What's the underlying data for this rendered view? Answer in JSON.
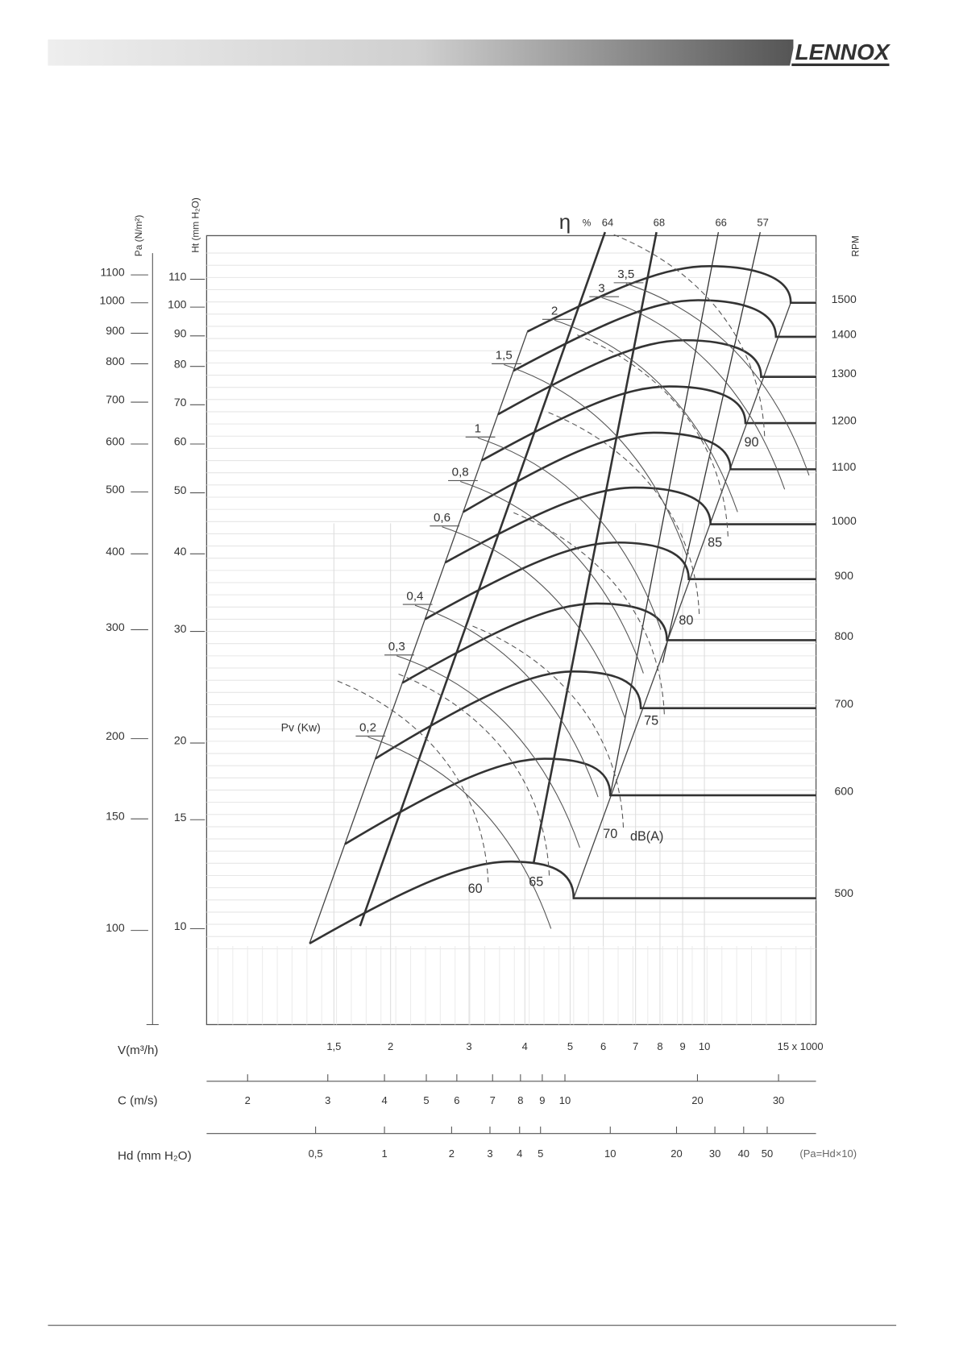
{
  "header": {
    "brand": "LENNOX"
  },
  "axes": {
    "pa": {
      "label": "Pa (N/m²)",
      "ticks": [
        "1100",
        "1000",
        "900",
        "800",
        "700",
        "600",
        "500",
        "400",
        "300",
        "200",
        "150",
        "100"
      ]
    },
    "ht": {
      "label": "Ht (mm H₂O)",
      "ticks": [
        "110",
        "100",
        "90",
        "80",
        "70",
        "60",
        "50",
        "40",
        "30",
        "20",
        "15",
        "10"
      ]
    },
    "rpm": {
      "label": "RPM",
      "ticks": [
        "1500",
        "1400",
        "1300",
        "1200",
        "1100",
        "1000",
        "900",
        "800",
        "700",
        "600",
        "500"
      ]
    },
    "v": {
      "label": "V(m³/h)",
      "ticks": [
        "1,5",
        "2",
        "3",
        "4",
        "5",
        "6",
        "7",
        "8",
        "9",
        "10",
        "15 x 1000"
      ]
    },
    "c": {
      "label": "C (m/s)",
      "ticks": [
        "2",
        "3",
        "4",
        "5",
        "6",
        "7",
        "8",
        "9",
        "10",
        "20",
        "30"
      ]
    },
    "hd": {
      "label": "Hd (mm H₂O)",
      "ticks": [
        "0,5",
        "1",
        "2",
        "3",
        "4",
        "5",
        "10",
        "20",
        "30",
        "40",
        "50"
      ],
      "note": "(Pa=Hd×10)"
    }
  },
  "efficiency": {
    "symbol": "η",
    "unit": "%",
    "labels": [
      "64",
      "68",
      "66",
      "57"
    ]
  },
  "power": {
    "label": "Pv (Kw)",
    "labels": [
      "0,2",
      "0,3",
      "0,4",
      "0,6",
      "0,8",
      "1",
      "1,5",
      "2",
      "3",
      "3,5"
    ]
  },
  "noise": {
    "unit": "dB(A)",
    "labels": [
      "60",
      "65",
      "70",
      "75",
      "80",
      "85",
      "90"
    ]
  }
}
